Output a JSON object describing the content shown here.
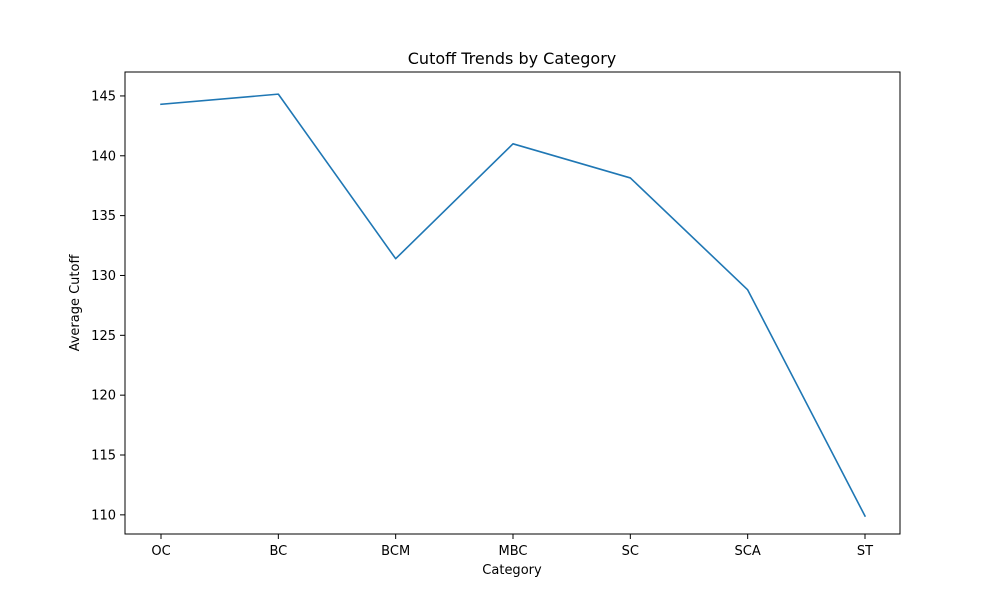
{
  "chart_data": {
    "type": "line",
    "title": "Cutoff Trends by Category",
    "xlabel": "Category",
    "ylabel": "Average Cutoff",
    "categories": [
      "OC",
      "BC",
      "BCM",
      "MBC",
      "SC",
      "SCA",
      "ST"
    ],
    "series": [
      {
        "values": [
          144.3,
          145.15,
          131.4,
          141.0,
          138.15,
          128.8,
          109.9
        ],
        "color": "#1f77b4"
      }
    ],
    "ylim": [
      108.4,
      147.0
    ],
    "yticks": [
      110,
      115,
      120,
      125,
      130,
      135,
      140,
      145
    ],
    "grid": false,
    "legend": "none"
  }
}
